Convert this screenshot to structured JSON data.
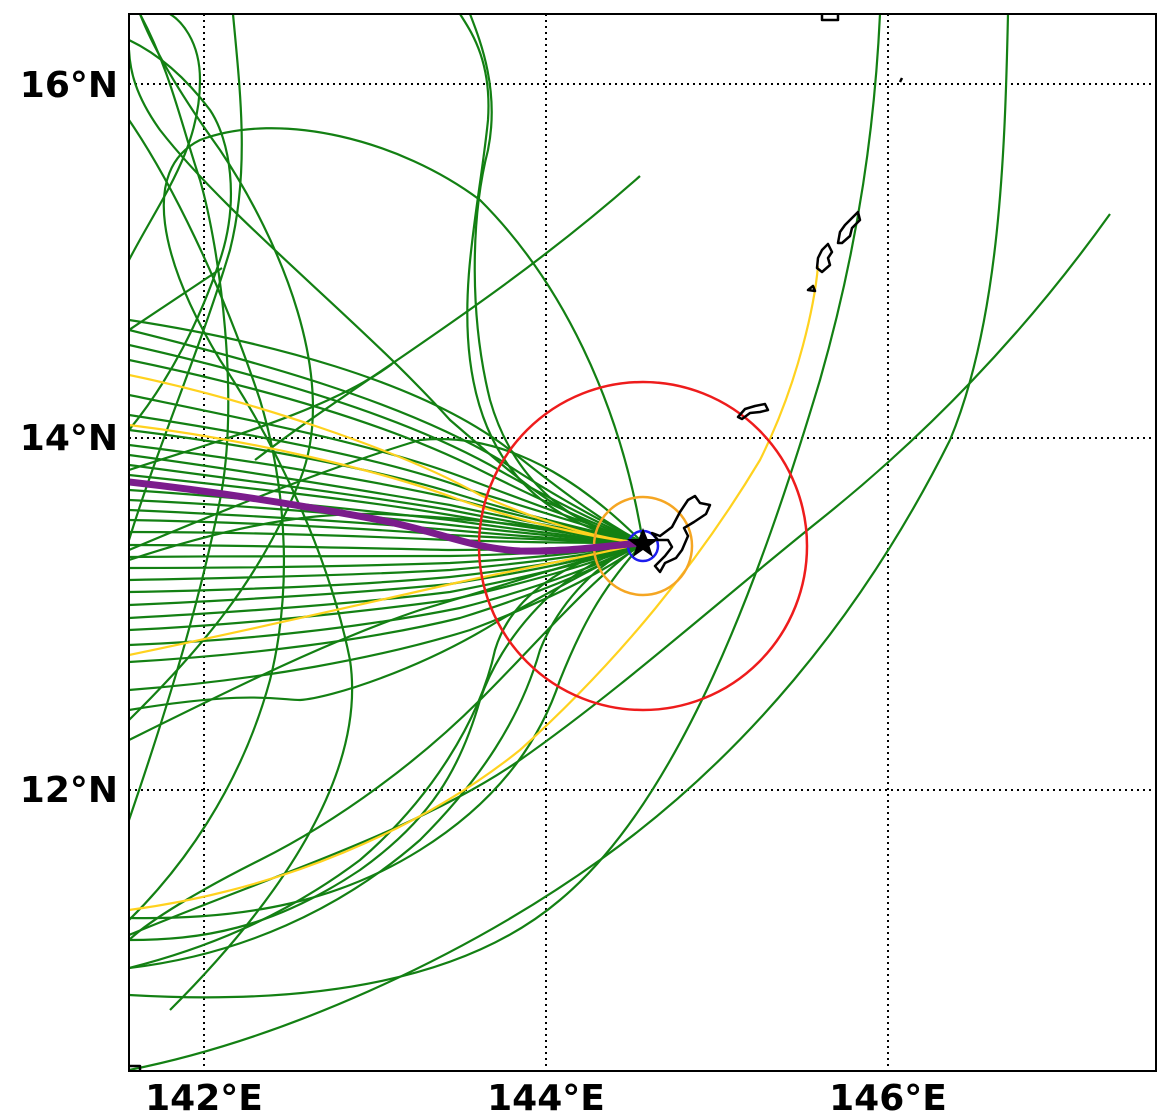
{
  "map": {
    "lon_labels": [
      "142°E",
      "144°E",
      "146°E"
    ],
    "lat_labels": [
      "16°N",
      "14°N",
      "12°N"
    ],
    "lon_ticks": [
      142,
      144,
      146
    ],
    "lat_ticks": [
      16,
      14,
      12
    ],
    "extent": {
      "lon_min": 141.55,
      "lon_max": 147.55,
      "lat_min": 10.35,
      "lat_max": 16.4
    },
    "gridline_style": "dotted",
    "colors": {
      "ensemble_tracks": "#138013",
      "highlight_tracks": "#ffd21f",
      "mean_track": "#7b1c8c",
      "outer_radius_circle": "#ee1c1c",
      "middle_radius_circle": "#f5a623",
      "inner_radius_circle": "#1c1cee",
      "coastline": "#000000",
      "point_marker": "#000000"
    },
    "marker": {
      "symbol": "star",
      "lon": 144.58,
      "lat": 13.42
    },
    "range_circles": [
      "outer",
      "middle",
      "inner"
    ],
    "landmasses": [
      "guam",
      "rota",
      "aguijan",
      "tinian",
      "saipan",
      "farallon-de-medinilla",
      "small-island-north",
      "small-island-top"
    ]
  }
}
